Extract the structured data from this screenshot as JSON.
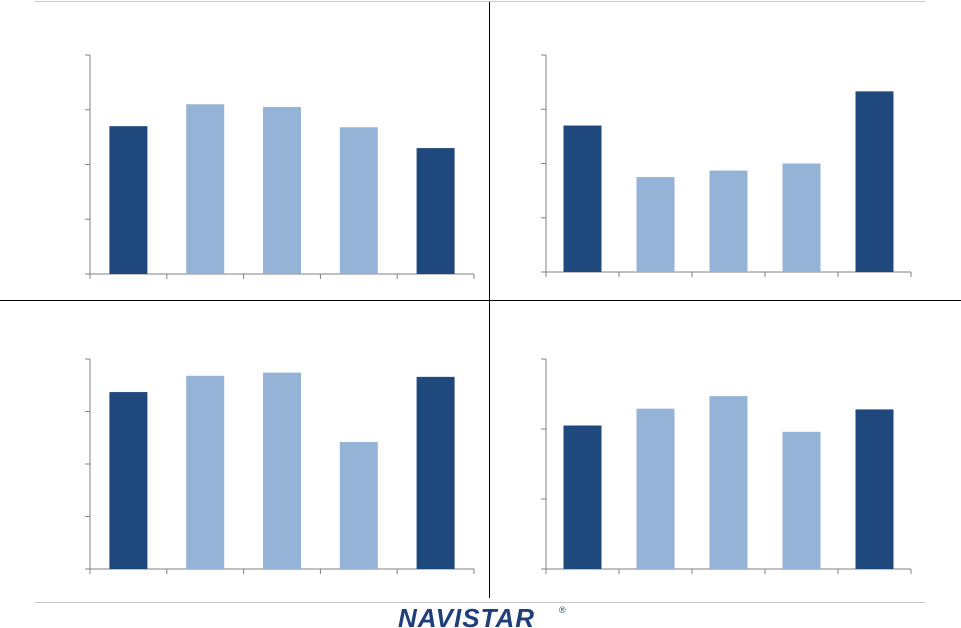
{
  "brand": {
    "logo_text": "NAVISTAR",
    "registered_mark": "®",
    "color": "#1f3f7a"
  },
  "colors": {
    "dark": "#1f497d",
    "light": "#95b3d7",
    "divider": "#000000",
    "rule": "#c8c8c8"
  },
  "chart_data": [
    {
      "type": "bar",
      "ylim": [
        0,
        4
      ],
      "series": [
        {
          "values": [
            2.7,
            3.1,
            3.05,
            2.68,
            2.3
          ]
        }
      ],
      "colors": [
        "dark",
        "light",
        "light",
        "light",
        "dark"
      ],
      "grid": false
    },
    {
      "type": "bar",
      "ylim": [
        0,
        4
      ],
      "series": [
        {
          "values": [
            2.7,
            1.75,
            1.87,
            2.0,
            3.33
          ]
        }
      ],
      "colors": [
        "dark",
        "light",
        "light",
        "light",
        "dark"
      ],
      "grid": false
    },
    {
      "type": "bar",
      "ylim": [
        0,
        4
      ],
      "series": [
        {
          "values": [
            3.37,
            3.68,
            3.74,
            2.42,
            3.66
          ]
        }
      ],
      "colors": [
        "dark",
        "light",
        "light",
        "light",
        "dark"
      ],
      "grid": false
    },
    {
      "type": "bar",
      "ylim": [
        0,
        3
      ],
      "series": [
        {
          "values": [
            2.05,
            2.29,
            2.47,
            1.96,
            2.28
          ]
        }
      ],
      "colors": [
        "dark",
        "light",
        "light",
        "light",
        "dark"
      ],
      "grid": false
    }
  ]
}
